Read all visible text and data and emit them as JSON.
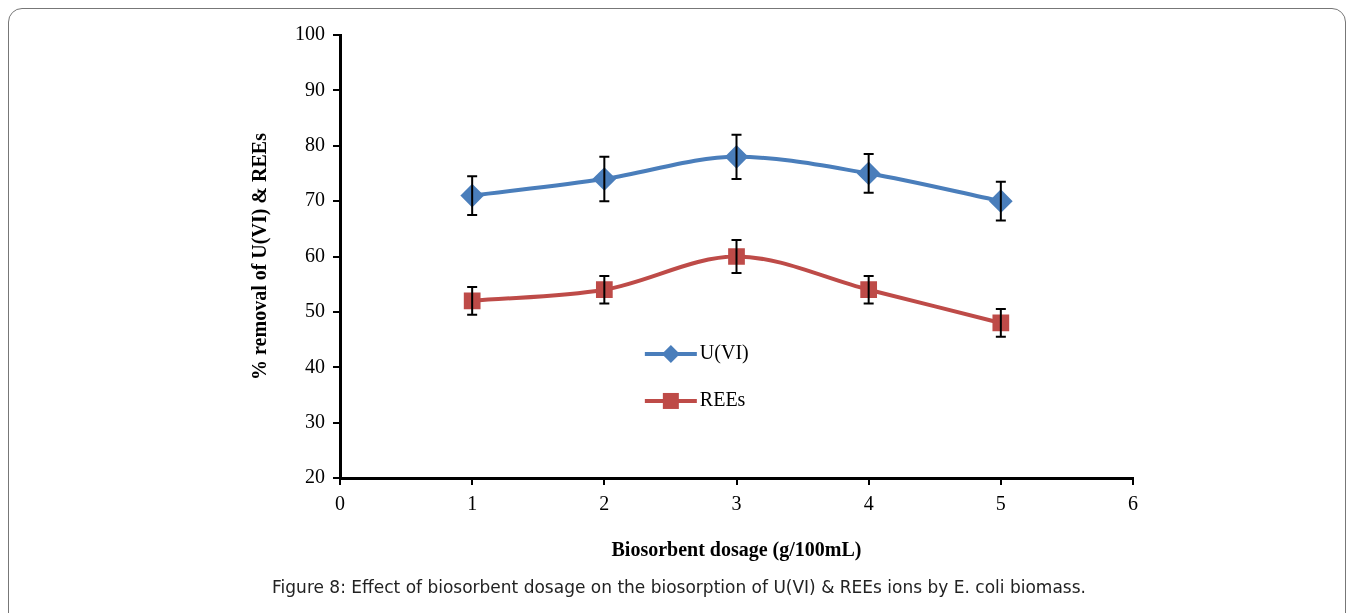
{
  "chart_data": {
    "type": "line",
    "xlabel": "Biosorbent dosage (g/100mL)",
    "ylabel": "% removal of U(VI) & REEs",
    "x": [
      1,
      2,
      3,
      4,
      5
    ],
    "series": [
      {
        "name": "U(VI)",
        "color": "#4a7ebb",
        "marker": "diamond",
        "values": [
          71,
          74,
          78,
          75,
          70
        ],
        "errors": [
          3.5,
          4,
          4,
          3.5,
          3.5
        ]
      },
      {
        "name": "REEs",
        "color": "#be4b48",
        "marker": "square",
        "values": [
          52,
          54,
          60,
          54,
          48
        ],
        "errors": [
          2.5,
          2.5,
          3,
          2.5,
          2.5
        ]
      }
    ],
    "xlim": [
      0,
      6
    ],
    "xticks": [
      0,
      1,
      2,
      3,
      4,
      5,
      6
    ],
    "ylim": [
      20,
      100
    ],
    "yticks": [
      20,
      30,
      40,
      50,
      60,
      70,
      80,
      90,
      100
    ],
    "grid": false,
    "legend": "center",
    "line_style": "solid",
    "annotations": [
      "Figure 8: Effect of biosorbent dosage on the biosorption of U(VI) & REEs ions by E. coli biomass."
    ]
  }
}
